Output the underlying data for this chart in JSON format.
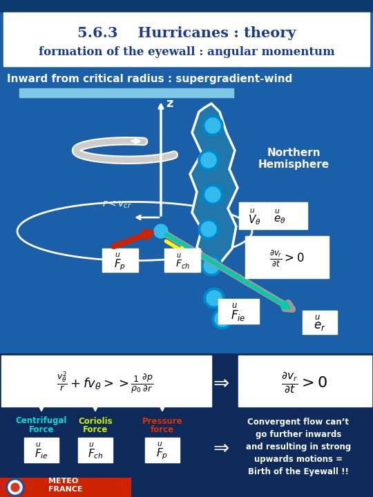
{
  "title_line1": "5.6.3    Hurricanes : theory",
  "title_line2": "formation of the eyewall : angular momentum",
  "subtitle": "Inward from critical radius : supergradient-wind",
  "bg_color": "#1a5fa8",
  "dark_bg": "#0d3a6e",
  "bottom_bg": "#0d2a5a",
  "northern_hemisphere": "Northern\nHemisphere",
  "cyan_color": "#00ccff",
  "yellow_color": "#ffff00",
  "red_color": "#cc2200",
  "teal_color": "#00bbaa",
  "white": "#ffffff",
  "centrifugal": "Centrifugal",
  "centrifugal2": "Force",
  "coriolis": "Coriolis",
  "coriolis2": "Force",
  "pressure": "Pressure",
  "pressure2": "force",
  "convergent_text": "Convergent flow can’t\ngo further inwards\nand resulting in strong\nupwards motions =\nBirth of the Eyewall !!"
}
